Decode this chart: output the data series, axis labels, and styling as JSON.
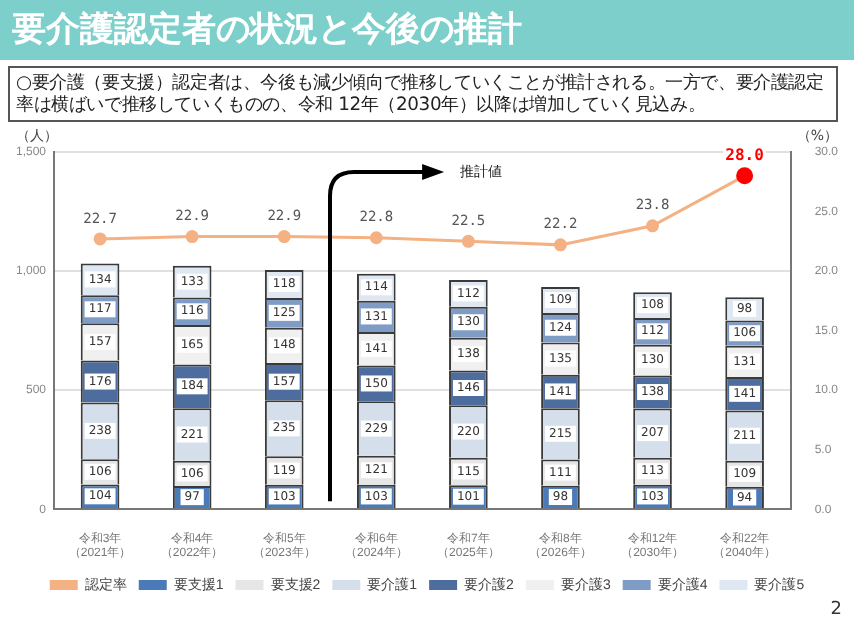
{
  "chart_data": {
    "type": "bar",
    "stacked": true,
    "title": "要介護認定者の状況と今後の推計",
    "subtitle": "○要介護（要支援）認定者は、今後も減少傾向で推移していくことが推計される。一方で、要介護認定率は横ばいで推移していくものの、令和 12年（2030年）以降は増加していく見込み。",
    "ylabel": "（人）",
    "y2label": "（%）",
    "categories": [
      "令和3年（2021年）",
      "令和4年（2022年）",
      "令和5年（2023年）",
      "令和6年（2024年）",
      "令和7年（2025年）",
      "令和8年（2026年）",
      "令和12年（2030年）",
      "令和22年（2040年）"
    ],
    "series": [
      {
        "name": "要支援1",
        "color": "#4a7ab8",
        "values": [
          104,
          97,
          103,
          103,
          101,
          98,
          103,
          94
        ]
      },
      {
        "name": "要支援2",
        "color": "#e6e6e6",
        "values": [
          106,
          106,
          119,
          121,
          115,
          111,
          113,
          109
        ]
      },
      {
        "name": "要介護1",
        "color": "#d5dfeb",
        "values": [
          238,
          221,
          235,
          229,
          220,
          215,
          207,
          211
        ]
      },
      {
        "name": "要介護2",
        "color": "#4c6d9e",
        "values": [
          176,
          184,
          157,
          150,
          146,
          141,
          138,
          141
        ]
      },
      {
        "name": "要介護3",
        "color": "#f0f0f0",
        "values": [
          157,
          165,
          148,
          141,
          138,
          135,
          130,
          131
        ]
      },
      {
        "name": "要介護4",
        "color": "#7f9cc6",
        "values": [
          117,
          116,
          125,
          131,
          130,
          124,
          112,
          106
        ]
      },
      {
        "name": "要介護5",
        "color": "#dfe7f3",
        "values": [
          134,
          133,
          118,
          114,
          112,
          109,
          108,
          98
        ]
      },
      {
        "name": "認定率",
        "type": "line",
        "axis": "y2",
        "color": "#f4b183",
        "colors": [
          "#f4b183",
          "#f4b183",
          "#f4b183",
          "#f4b183",
          "#f4b183",
          "#f4b183",
          "#f4b183",
          "#ff0000"
        ],
        "values": [
          22.7,
          22.9,
          22.9,
          22.8,
          22.5,
          22.2,
          23.8,
          28.0
        ],
        "value_labels": [
          "22.7",
          "22.9",
          "22.9",
          "22.8",
          "22.5",
          "22.2",
          "23.8",
          "28.0"
        ]
      }
    ],
    "ylim": [
      0,
      1500
    ],
    "yticks": [
      0,
      {
        "value": 500,
        "label": "500"
      },
      {
        "value": 1000,
        "label": "1,000"
      },
      {
        "value": 1500,
        "label": "1,500"
      }
    ],
    "y2lim": [
      0,
      30
    ],
    "y2ticks": [
      {
        "value": 0,
        "label": "0.0"
      },
      {
        "value": 5,
        "label": "5.0"
      },
      {
        "value": 10,
        "label": "10.0"
      },
      {
        "value": 15,
        "label": "15.0"
      },
      {
        "value": 20,
        "label": "20.0"
      },
      {
        "value": 25,
        "label": "25.0"
      },
      {
        "value": 30,
        "label": "30.0"
      }
    ],
    "grid": "y",
    "data_labels": true,
    "marker": "circle",
    "legend": "bottom",
    "annotations": [
      "推計値",
      "2"
    ]
  }
}
